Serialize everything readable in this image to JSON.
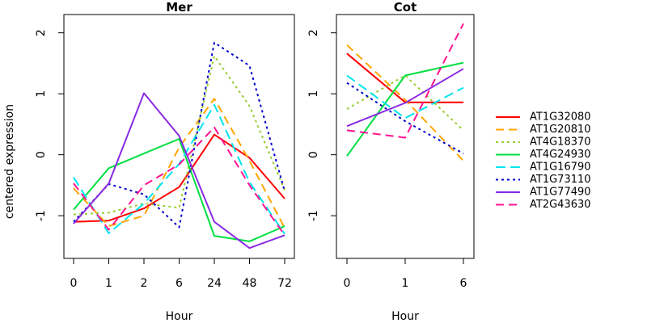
{
  "chart_data": {
    "type": "line",
    "ylabel": "centered expression",
    "legend_position": "right",
    "series_styles": [
      {
        "name": "AT1G32080",
        "color": "#ff0000",
        "dash": "solid"
      },
      {
        "name": "AT1G20810",
        "color": "#ffa500",
        "dash": "dashed"
      },
      {
        "name": "AT4G18370",
        "color": "#9acd32",
        "dash": "dotted"
      },
      {
        "name": "AT4G24930",
        "color": "#00e040",
        "dash": "solid"
      },
      {
        "name": "AT1G16790",
        "color": "#00e5ee",
        "dash": "longdash"
      },
      {
        "name": "AT1G73110",
        "color": "#0000cd",
        "dash": "dotted"
      },
      {
        "name": "AT1G77490",
        "color": "#8a2be2",
        "dash": "solid"
      },
      {
        "name": "AT2G43630",
        "color": "#ff1493",
        "dash": "dashed"
      }
    ],
    "panels": [
      {
        "title": "Mer",
        "xlabel": "Hour",
        "categories": [
          "0",
          "1",
          "2",
          "6",
          "24",
          "48",
          "72"
        ],
        "ylim": [
          -1.7,
          2.3
        ],
        "yticks": [
          -1,
          0,
          1,
          2
        ],
        "series": [
          {
            "name": "AT1G32080",
            "values": [
              -1.1,
              -1.08,
              -0.88,
              -0.53,
              0.33,
              -0.05,
              -0.72
            ]
          },
          {
            "name": "AT1G20810",
            "values": [
              -0.55,
              -1.17,
              -1.0,
              0.12,
              0.92,
              -0.1,
              -1.2
            ]
          },
          {
            "name": "AT4G18370",
            "values": [
              -0.98,
              -0.95,
              -0.8,
              -0.87,
              1.62,
              0.8,
              -0.58
            ]
          },
          {
            "name": "AT4G24930",
            "values": [
              -0.9,
              -0.22,
              0.02,
              0.26,
              -1.33,
              -1.42,
              -1.17
            ]
          },
          {
            "name": "AT1G16790",
            "values": [
              -0.37,
              -1.29,
              -0.8,
              -0.15,
              0.82,
              -0.45,
              -1.3
            ]
          },
          {
            "name": "AT1G73110",
            "values": [
              -1.1,
              -0.48,
              -0.65,
              -1.19,
              1.84,
              1.46,
              -0.6
            ]
          },
          {
            "name": "AT1G77490",
            "values": [
              -1.13,
              -0.47,
              1.01,
              0.31,
              -1.1,
              -1.53,
              -1.32
            ]
          },
          {
            "name": "AT2G43630",
            "values": [
              -0.47,
              -1.23,
              -0.5,
              -0.16,
              0.45,
              -0.5,
              -1.32
            ]
          }
        ]
      },
      {
        "title": "Cot",
        "xlabel": "Hour",
        "categories": [
          "0",
          "1",
          "6"
        ],
        "ylim": [
          -1.7,
          2.3
        ],
        "yticks": [
          -1,
          0,
          1,
          2
        ],
        "series": [
          {
            "name": "AT1G32080",
            "values": [
              1.66,
              0.86,
              0.86
            ]
          },
          {
            "name": "AT1G20810",
            "values": [
              1.8,
              0.9,
              -0.1
            ]
          },
          {
            "name": "AT4G18370",
            "values": [
              0.75,
              1.3,
              0.4
            ]
          },
          {
            "name": "AT4G24930",
            "values": [
              -0.02,
              1.3,
              1.51
            ]
          },
          {
            "name": "AT1G16790",
            "values": [
              1.3,
              0.6,
              1.1
            ]
          },
          {
            "name": "AT1G73110",
            "values": [
              1.18,
              0.55,
              0.02
            ]
          },
          {
            "name": "AT1G77490",
            "values": [
              0.47,
              0.85,
              1.41
            ]
          },
          {
            "name": "AT2G43630",
            "values": [
              0.4,
              0.28,
              2.15
            ]
          }
        ]
      }
    ]
  }
}
